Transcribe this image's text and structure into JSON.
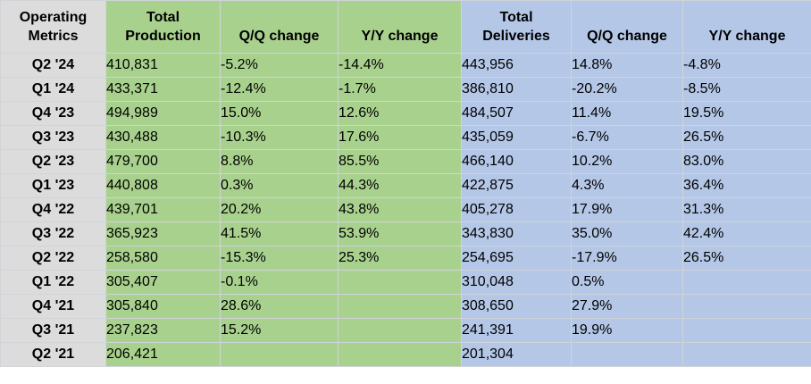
{
  "headers": {
    "metrics": [
      "Operating",
      "Metrics"
    ],
    "production": [
      "Total",
      "Production"
    ],
    "prod_qq": "Q/Q change",
    "prod_yy": "Y/Y change",
    "deliveries": [
      "Total",
      "Deliveries"
    ],
    "del_qq": "Q/Q change",
    "del_yy": "Y/Y change"
  },
  "rows": [
    {
      "quarter": "Q2 '24",
      "production": "410,831",
      "prod_qq": "-5.2%",
      "prod_yy": "-14.4%",
      "deliveries": "443,956",
      "del_qq": "14.8%",
      "del_yy": "-4.8%"
    },
    {
      "quarter": "Q1 '24",
      "production": "433,371",
      "prod_qq": "-12.4%",
      "prod_yy": "-1.7%",
      "deliveries": "386,810",
      "del_qq": "-20.2%",
      "del_yy": "-8.5%"
    },
    {
      "quarter": "Q4 '23",
      "production": "494,989",
      "prod_qq": "15.0%",
      "prod_yy": "12.6%",
      "deliveries": "484,507",
      "del_qq": "11.4%",
      "del_yy": "19.5%"
    },
    {
      "quarter": "Q3 '23",
      "production": "430,488",
      "prod_qq": "-10.3%",
      "prod_yy": "17.6%",
      "deliveries": "435,059",
      "del_qq": "-6.7%",
      "del_yy": "26.5%"
    },
    {
      "quarter": "Q2 '23",
      "production": "479,700",
      "prod_qq": "8.8%",
      "prod_yy": "85.5%",
      "deliveries": "466,140",
      "del_qq": "10.2%",
      "del_yy": "83.0%"
    },
    {
      "quarter": "Q1 '23",
      "production": "440,808",
      "prod_qq": "0.3%",
      "prod_yy": "44.3%",
      "deliveries": "422,875",
      "del_qq": "4.3%",
      "del_yy": "36.4%"
    },
    {
      "quarter": "Q4 '22",
      "production": "439,701",
      "prod_qq": "20.2%",
      "prod_yy": "43.8%",
      "deliveries": "405,278",
      "del_qq": "17.9%",
      "del_yy": "31.3%"
    },
    {
      "quarter": "Q3 '22",
      "production": "365,923",
      "prod_qq": "41.5%",
      "prod_yy": "53.9%",
      "deliveries": "343,830",
      "del_qq": "35.0%",
      "del_yy": "42.4%"
    },
    {
      "quarter": "Q2 '22",
      "production": "258,580",
      "prod_qq": "-15.3%",
      "prod_yy": "25.3%",
      "deliveries": "254,695",
      "del_qq": "-17.9%",
      "del_yy": "26.5%"
    },
    {
      "quarter": "Q1 '22",
      "production": "305,407",
      "prod_qq": "-0.1%",
      "prod_yy": "",
      "deliveries": "310,048",
      "del_qq": "0.5%",
      "del_yy": ""
    },
    {
      "quarter": "Q4 '21",
      "production": "305,840",
      "prod_qq": "28.6%",
      "prod_yy": "",
      "deliveries": "308,650",
      "del_qq": "27.9%",
      "del_yy": ""
    },
    {
      "quarter": "Q3 '21",
      "production": "237,823",
      "prod_qq": "15.2%",
      "prod_yy": "",
      "deliveries": "241,391",
      "del_qq": "19.9%",
      "del_yy": ""
    },
    {
      "quarter": "Q2 '21",
      "production": "206,421",
      "prod_qq": "",
      "prod_yy": "",
      "deliveries": "201,304",
      "del_qq": "",
      "del_yy": ""
    }
  ],
  "colors": {
    "label_fill": "#dcdcdc",
    "production_fill": "#a9d18e",
    "deliveries_fill": "#b4c7e7",
    "gridline": "#d0d4d9"
  }
}
